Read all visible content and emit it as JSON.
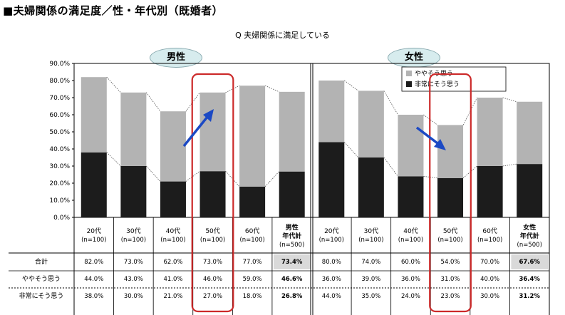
{
  "page_title": "■夫婦関係の満足度／性・年代別（既婚者）",
  "question": "Q 夫婦関係に満足している",
  "groups": [
    {
      "label": "男性"
    },
    {
      "label": "女性"
    }
  ],
  "legend": [
    "ややそう思う",
    "非常にそう思う"
  ],
  "colors": {
    "light": "#b3b3b3",
    "dark": "#1c1c1c",
    "highlight": "#cc2a2a",
    "arrow": "#1b49c4",
    "total_bg": "#d9d9d9"
  },
  "row_labels": [
    "合計",
    "ややそう思う",
    "非常にそう思う"
  ],
  "chart_data": {
    "type": "bar",
    "stacked": true,
    "ylim": [
      0,
      90
    ],
    "y_ticks": [
      "0.0%",
      "10.0%",
      "20.0%",
      "30.0%",
      "40.0%",
      "50.0%",
      "60.0%",
      "70.0%",
      "80.0%",
      "90.0%"
    ],
    "categories": [
      {
        "l1": "20代",
        "l2": "(n=100)"
      },
      {
        "l1": "30代",
        "l2": "(n=100)"
      },
      {
        "l1": "40代",
        "l2": "(n=100)"
      },
      {
        "l1": "50代",
        "l2": "(n=100)"
      },
      {
        "l1": "60代",
        "l2": "(n=100)"
      },
      {
        "l1": "男性",
        "l2": "年代計",
        "l3": "(n=500)",
        "bold": true
      },
      {
        "l1": "20代",
        "l2": "(n=100)"
      },
      {
        "l1": "30代",
        "l2": "(n=100)"
      },
      {
        "l1": "40代",
        "l2": "(n=100)"
      },
      {
        "l1": "50代",
        "l2": "(n=100)"
      },
      {
        "l1": "60代",
        "l2": "(n=100)"
      },
      {
        "l1": "女性",
        "l2": "年代計",
        "l3": "(n=500)",
        "bold": true
      }
    ],
    "series": [
      {
        "name": "非常にそう思う",
        "values": [
          38.0,
          30.0,
          21.0,
          27.0,
          18.0,
          26.8,
          44.0,
          35.0,
          24.0,
          23.0,
          30.0,
          31.2
        ]
      },
      {
        "name": "ややそう思う",
        "values": [
          44.0,
          43.0,
          41.0,
          46.0,
          59.0,
          46.6,
          36.0,
          39.0,
          36.0,
          31.0,
          40.0,
          36.4
        ]
      }
    ],
    "table": {
      "total": [
        "82.0%",
        "73.0%",
        "62.0%",
        "73.0%",
        "77.0%",
        "73.4%",
        "80.0%",
        "74.0%",
        "60.0%",
        "54.0%",
        "70.0%",
        "67.6%"
      ],
      "somewhat": [
        "44.0%",
        "43.0%",
        "41.0%",
        "46.0%",
        "59.0%",
        "46.6%",
        "36.0%",
        "39.0%",
        "36.0%",
        "31.0%",
        "40.0%",
        "36.4%"
      ],
      "very": [
        "38.0%",
        "30.0%",
        "21.0%",
        "27.0%",
        "18.0%",
        "26.8%",
        "44.0%",
        "35.0%",
        "24.0%",
        "23.0%",
        "30.0%",
        "31.2%"
      ]
    }
  }
}
